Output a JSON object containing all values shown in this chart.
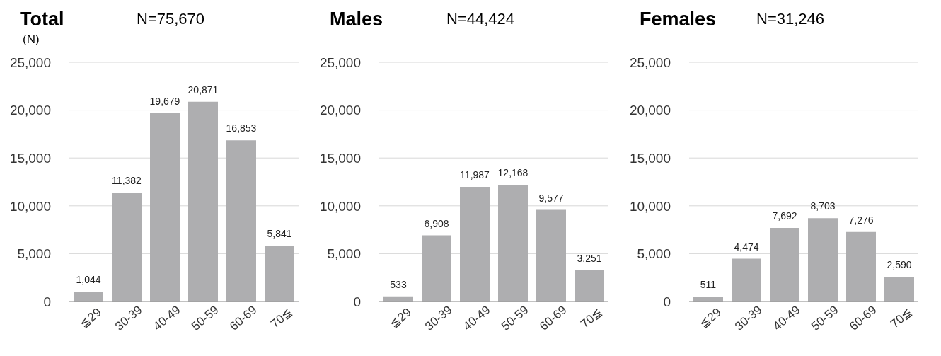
{
  "chart_data": [
    {
      "type": "bar",
      "title": "Total",
      "subtitle": "N=75,670",
      "ylabel": "(N)",
      "categories": [
        "≦29",
        "30-39",
        "40-49",
        "50-59",
        "60-69",
        "70≦"
      ],
      "values": [
        1044,
        11382,
        19679,
        20871,
        16853,
        5841
      ],
      "value_labels": [
        "1,044",
        "11,382",
        "19,679",
        "20,871",
        "16,853",
        "5,841"
      ],
      "color": "#aeaeb0",
      "ylim": [
        0,
        25000
      ],
      "yticks": [
        {
          "value": 0,
          "label": "0"
        },
        {
          "value": 5000,
          "label": "5,000"
        },
        {
          "value": 10000,
          "label": "10,000"
        },
        {
          "value": 15000,
          "label": "15,000"
        },
        {
          "value": 20000,
          "label": "20,000"
        },
        {
          "value": 25000,
          "label": "25,000"
        }
      ],
      "grid": "y"
    },
    {
      "type": "bar",
      "title": "Males",
      "subtitle": "N=44,424",
      "categories": [
        "≦29",
        "30-39",
        "40-49",
        "50-59",
        "60-69",
        "70≦"
      ],
      "values": [
        533,
        6908,
        11987,
        12168,
        9577,
        3251
      ],
      "value_labels": [
        "533",
        "6,908",
        "11,987",
        "12,168",
        "9,577",
        "3,251"
      ],
      "color": "#aeaeb0",
      "ylim": [
        0,
        25000
      ],
      "yticks": [
        {
          "value": 0,
          "label": "0"
        },
        {
          "value": 5000,
          "label": "5,000"
        },
        {
          "value": 10000,
          "label": "10,000"
        },
        {
          "value": 15000,
          "label": "15,000"
        },
        {
          "value": 20000,
          "label": "20,000"
        },
        {
          "value": 25000,
          "label": "25,000"
        }
      ],
      "grid": "y"
    },
    {
      "type": "bar",
      "title": "Females",
      "subtitle": "N=31,246",
      "categories": [
        "≦29",
        "30-39",
        "40-49",
        "50-59",
        "60-69",
        "70≦"
      ],
      "values": [
        511,
        4474,
        7692,
        8703,
        7276,
        2590
      ],
      "value_labels": [
        "511",
        "4,474",
        "7,692",
        "8,703",
        "7,276",
        "2,590"
      ],
      "color": "#aeaeb0",
      "ylim": [
        0,
        25000
      ],
      "yticks": [
        {
          "value": 0,
          "label": "0"
        },
        {
          "value": 5000,
          "label": "5,000"
        },
        {
          "value": 10000,
          "label": "10,000"
        },
        {
          "value": 15000,
          "label": "15,000"
        },
        {
          "value": 20000,
          "label": "20,000"
        },
        {
          "value": 25000,
          "label": "25,000"
        }
      ],
      "grid": "y"
    }
  ]
}
